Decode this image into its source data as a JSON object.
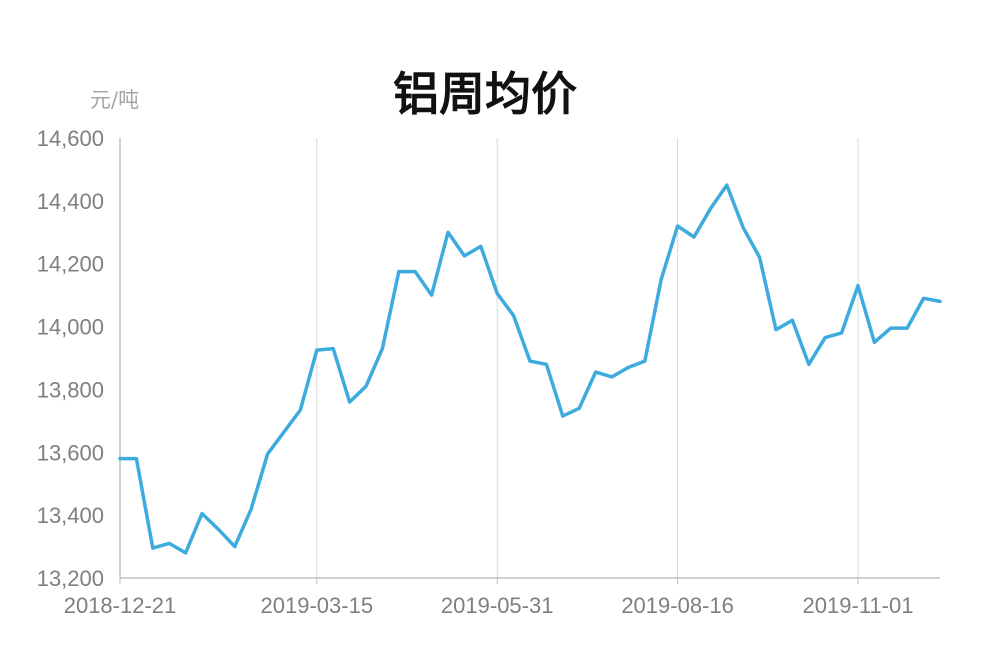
{
  "chart_data": {
    "type": "line",
    "title": "铝周均价",
    "ylabel": "元/吨",
    "xlabel": "",
    "ylim": [
      13200,
      14600
    ],
    "yticks": [
      13200,
      13400,
      13600,
      13800,
      14000,
      14200,
      14400,
      14600
    ],
    "ytick_labels": [
      "13,200",
      "13,400",
      "13,600",
      "13,800",
      "14,000",
      "14,200",
      "14,400",
      "14,600"
    ],
    "xtick_labels": [
      "2018-12-21",
      "2019-03-15",
      "2019-05-31",
      "2019-08-16",
      "2019-11-01"
    ],
    "xtick_index": [
      0,
      12,
      23,
      34,
      45
    ],
    "grid": "vertical",
    "line_color": "#3DABDE",
    "series": [
      {
        "values": [
          13580,
          13580,
          13295,
          13310,
          13280,
          13405,
          13355,
          13300,
          13420,
          13595,
          13665,
          13735,
          13925,
          13930,
          13760,
          13810,
          13930,
          14175,
          14175,
          14100,
          14300,
          14225,
          14255,
          14105,
          14035,
          13890,
          13880,
          13715,
          13740,
          13855,
          13840,
          13870,
          13890,
          14150,
          14320,
          14285,
          14375,
          14450,
          14315,
          14220,
          13990,
          14020,
          13880,
          13965,
          13980,
          14130,
          13950,
          13995,
          13995,
          14090,
          14080
        ]
      }
    ]
  }
}
